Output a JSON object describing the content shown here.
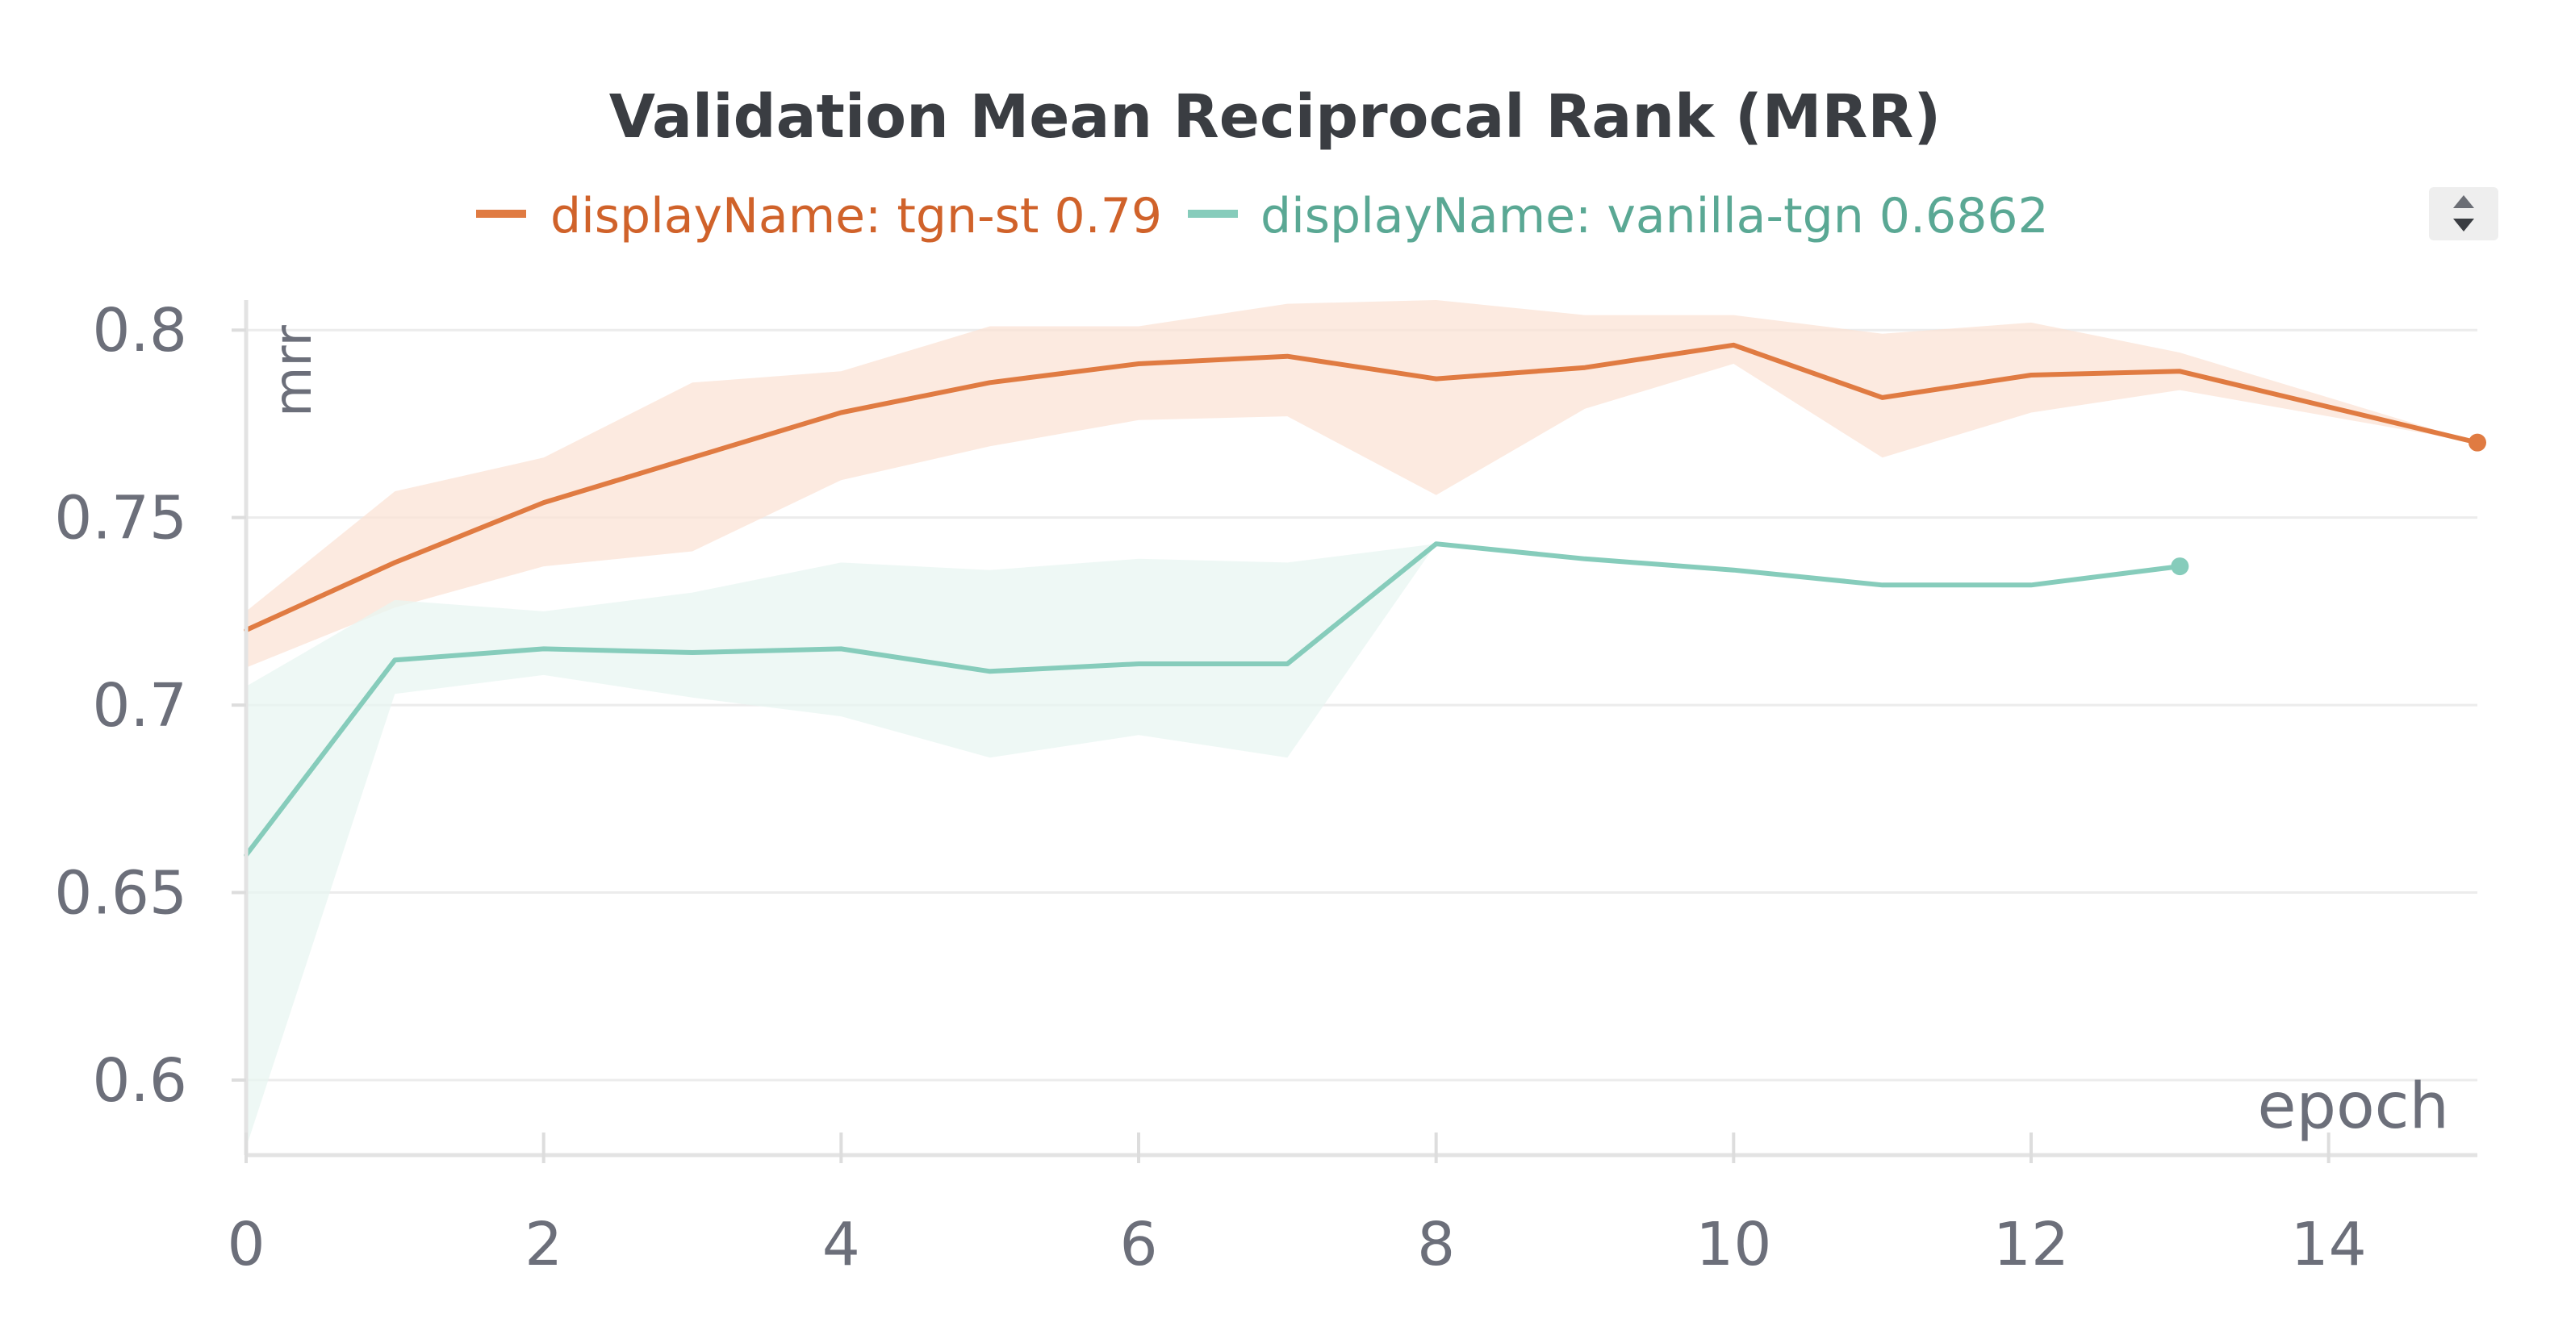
{
  "chart_data": {
    "type": "line",
    "title": "Validation Mean Reciprocal Rank (MRR)",
    "xlabel": "epoch",
    "ylabel": "mrr",
    "xlim": [
      0,
      15
    ],
    "ylim": [
      0.58,
      0.808
    ],
    "x_ticks": [
      0,
      2,
      4,
      6,
      8,
      10,
      12,
      14
    ],
    "y_ticks": [
      0.6,
      0.65,
      0.7,
      0.75,
      0.8
    ],
    "x_tick_labels": [
      "0",
      "2",
      "4",
      "6",
      "8",
      "10",
      "12",
      "14"
    ],
    "y_tick_labels": [
      "0.6",
      "0.65",
      "0.7",
      "0.75",
      "0.8"
    ],
    "grid": true,
    "legend_position": "top",
    "series": [
      {
        "name": "displayName: tgn-st 0.79",
        "color": "#e07b42",
        "text_color": "#d0622a",
        "band_color": "#fbe3d6",
        "x": [
          0,
          1,
          2,
          3,
          4,
          5,
          6,
          7,
          8,
          9,
          10,
          11,
          12,
          13,
          15
        ],
        "y": [
          0.72,
          0.738,
          0.754,
          0.766,
          0.778,
          0.786,
          0.791,
          0.793,
          0.787,
          0.79,
          0.796,
          0.782,
          0.788,
          0.789,
          0.77
        ],
        "lower": [
          0.71,
          0.726,
          0.737,
          0.741,
          0.76,
          0.769,
          0.776,
          0.777,
          0.756,
          0.779,
          0.791,
          0.766,
          0.778,
          0.784,
          0.77
        ],
        "upper": [
          0.725,
          0.757,
          0.766,
          0.786,
          0.789,
          0.801,
          0.801,
          0.807,
          0.808,
          0.804,
          0.804,
          0.799,
          0.802,
          0.794,
          0.77
        ]
      },
      {
        "name": "displayName: vanilla-tgn 0.6862",
        "color": "#86ccbb",
        "text_color": "#5aa894",
        "band_color": "#e8f5f1",
        "x": [
          0,
          1,
          2,
          3,
          4,
          5,
          6,
          7,
          8,
          9,
          10,
          11,
          12,
          13
        ],
        "y": [
          0.66,
          0.712,
          0.715,
          0.714,
          0.715,
          0.709,
          0.711,
          0.711,
          0.743,
          0.739,
          0.736,
          0.732,
          0.732,
          0.737
        ],
        "lower": [
          0.582,
          0.703,
          0.708,
          0.702,
          0.697,
          0.686,
          0.692,
          0.686,
          0.743,
          0.739,
          0.736,
          0.732,
          0.732,
          0.737
        ],
        "upper": [
          0.705,
          0.728,
          0.725,
          0.73,
          0.738,
          0.736,
          0.739,
          0.738,
          0.743,
          0.739,
          0.736,
          0.732,
          0.732,
          0.737
        ]
      }
    ]
  },
  "controls": {
    "legend_scroll_icon": "up-down-arrows-icon"
  }
}
